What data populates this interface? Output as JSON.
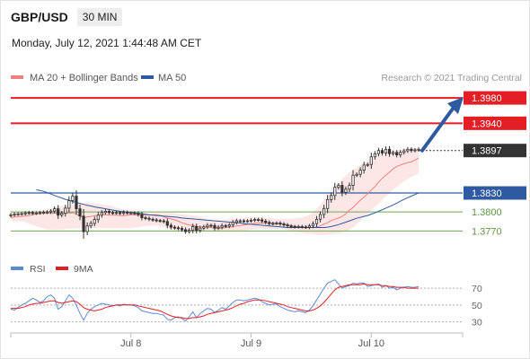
{
  "header": {
    "symbol": "GBP/USD",
    "timeframe": "30 MIN",
    "datetime": "Monday, July 12, 2021 1:44:48 AM CET"
  },
  "legend": {
    "ma20_bb": "MA 20 + Bollinger Bands",
    "ma50": "MA 50",
    "credit": "Research © 2021 Trading Central",
    "rsi": "RSI",
    "ma9": "9MA"
  },
  "colors": {
    "resistance": "#e31e24",
    "support_blue": "#2d5aa0",
    "support_green": "#6fa84f",
    "price_tag": "#333333",
    "ma20": "#f08080",
    "bollinger_fill": "#fde2e2",
    "ma50": "#2d5aa0",
    "rsi": "#5b8ad6",
    "rsi_ma": "#e31e24",
    "candle": "#333333",
    "arrow": "#2d5aa0"
  },
  "chart_data": {
    "type": "candlestick",
    "y_range": [
      1.3745,
      1.4
    ],
    "levels": [
      {
        "value": 1.398,
        "label": "1.3980",
        "kind": "resistance"
      },
      {
        "value": 1.394,
        "label": "1.3940",
        "kind": "resistance"
      },
      {
        "value": 1.3897,
        "label": "1.3897",
        "kind": "last_price"
      },
      {
        "value": 1.383,
        "label": "1.3830",
        "kind": "pivot"
      },
      {
        "value": 1.38,
        "label": "1.3800",
        "kind": "support"
      },
      {
        "value": 1.377,
        "label": "1.3770",
        "kind": "support"
      }
    ],
    "x_ticks": [
      "Jul 8",
      "Jul 9",
      "Jul 10"
    ],
    "x_tick_index": [
      33,
      66,
      99
    ],
    "close": [
      1.37955,
      1.37965,
      1.3797,
      1.37975,
      1.37985,
      1.3799,
      1.3798,
      1.37985,
      1.3799,
      1.37995,
      1.38,
      1.38015,
      1.3805,
      1.3795,
      1.3798,
      1.3806,
      1.3818,
      1.3825,
      1.3805,
      1.37935,
      1.3769,
      1.3778,
      1.3782,
      1.3788,
      1.3795,
      1.3799,
      1.3801,
      1.3799,
      1.37985,
      1.3799,
      1.3798,
      1.37995,
      1.37985,
      1.37985,
      1.3798,
      1.3796,
      1.3791,
      1.379,
      1.37885,
      1.37875,
      1.37865,
      1.3786,
      1.3785,
      1.3779,
      1.3776,
      1.3775,
      1.3774,
      1.3772,
      1.3769,
      1.3771,
      1.3777,
      1.3771,
      1.37745,
      1.37765,
      1.3779,
      1.37785,
      1.37745,
      1.3776,
      1.37785,
      1.37775,
      1.37795,
      1.37835,
      1.3786,
      1.3786,
      1.37855,
      1.3786,
      1.3787,
      1.3788,
      1.37875,
      1.37855,
      1.37835,
      1.37815,
      1.3782,
      1.37825,
      1.3781,
      1.37795,
      1.3778,
      1.3777,
      1.37765,
      1.3777,
      1.37765,
      1.3776,
      1.3778,
      1.37815,
      1.37885,
      1.3796,
      1.38055,
      1.38195,
      1.3826,
      1.3839,
      1.3842,
      1.3831,
      1.3836,
      1.3842,
      1.3858,
      1.38595,
      1.3866,
      1.3874,
      1.3875,
      1.3887,
      1.3892,
      1.3897,
      1.3893,
      1.3899,
      1.3892,
      1.3894,
      1.389,
      1.3894,
      1.38965,
      1.3899,
      1.3897,
      1.3898,
      1.3899
    ],
    "ma20": [
      1.3791,
      1.3792,
      1.37925,
      1.3793,
      1.37935,
      1.37945,
      1.37955,
      1.3797,
      1.37975,
      1.3798,
      1.3798,
      1.3798,
      1.3798,
      1.3798,
      1.37975,
      1.37975,
      1.3798,
      1.3799,
      1.37965,
      1.37935,
      1.3791,
      1.3792,
      1.3793,
      1.3794,
      1.37945,
      1.37955,
      1.37955,
      1.3795,
      1.3795,
      1.3795,
      1.37945,
      1.37945,
      1.3795,
      1.37955,
      1.37955,
      1.3795,
      1.37955,
      1.37955,
      1.37955,
      1.37955,
      1.37955,
      1.37945,
      1.37925,
      1.37905,
      1.3789,
      1.37875,
      1.37855,
      1.3783,
      1.3781,
      1.37795,
      1.37785,
      1.37775,
      1.37765,
      1.3776,
      1.3776,
      1.37755,
      1.37745,
      1.37745,
      1.37745,
      1.37755,
      1.3776,
      1.3777,
      1.3778,
      1.37785,
      1.37795,
      1.37805,
      1.3781,
      1.3782,
      1.37825,
      1.37825,
      1.3783,
      1.37825,
      1.37825,
      1.3782,
      1.37815,
      1.37805,
      1.37795,
      1.37785,
      1.37775,
      1.3777,
      1.37755,
      1.3775,
      1.3775,
      1.37755,
      1.37765,
      1.3778,
      1.3781,
      1.3783,
      1.37865,
      1.37885,
      1.37905,
      1.3793,
      1.3797,
      1.3803,
      1.3807,
      1.3813,
      1.38185,
      1.38235,
      1.3829,
      1.38345,
      1.384,
      1.3847,
      1.3853,
      1.3858,
      1.3863,
      1.3868,
      1.3872,
      1.3874,
      1.3876,
      1.3878,
      1.3879,
      1.3882,
      1.3885
    ],
    "bb_upper": [
      1.38015,
      1.3801,
      1.38,
      1.3799,
      1.3799,
      1.3799,
      1.37995,
      1.38005,
      1.38015,
      1.3803,
      1.3804,
      1.38055,
      1.3807,
      1.38085,
      1.38095,
      1.38105,
      1.38115,
      1.3812,
      1.3813,
      1.38135,
      1.3814,
      1.3814,
      1.3814,
      1.38135,
      1.3813,
      1.3812,
      1.3811,
      1.38105,
      1.3809,
      1.3807,
      1.38055,
      1.3804,
      1.38025,
      1.3801,
      1.37995,
      1.3798,
      1.3797,
      1.3797,
      1.37975,
      1.3798,
      1.37985,
      1.37985,
      1.37985,
      1.37985,
      1.37985,
      1.3798,
      1.3797,
      1.37965,
      1.3796,
      1.37955,
      1.37945,
      1.37935,
      1.3792,
      1.37905,
      1.37895,
      1.37885,
      1.3788,
      1.3788,
      1.3788,
      1.3788,
      1.37885,
      1.3789,
      1.37895,
      1.37905,
      1.3791,
      1.37915,
      1.3792,
      1.3792,
      1.3792,
      1.37915,
      1.37905,
      1.379,
      1.379,
      1.3789,
      1.3789,
      1.3789,
      1.3789,
      1.37895,
      1.379,
      1.37905,
      1.37915,
      1.3793,
      1.37955,
      1.37995,
      1.3805,
      1.38115,
      1.38185,
      1.38255,
      1.3833,
      1.38395,
      1.3846,
      1.3852,
      1.38575,
      1.38625,
      1.38665,
      1.387,
      1.3874,
      1.3877,
      1.3881,
      1.3884,
      1.3887,
      1.38895,
      1.3892,
      1.38935,
      1.38955,
      1.38965,
      1.38975,
      1.38985,
      1.3899,
      1.38995,
      1.39,
      1.39005,
      1.39005
    ],
    "bb_lower": [
      1.37865,
      1.3786,
      1.37855,
      1.3785,
      1.37835,
      1.37815,
      1.37795,
      1.37775,
      1.37755,
      1.3774,
      1.37725,
      1.3772,
      1.3772,
      1.3772,
      1.37725,
      1.3773,
      1.37735,
      1.3774,
      1.37745,
      1.37745,
      1.37745,
      1.37745,
      1.37745,
      1.37745,
      1.37745,
      1.37745,
      1.37745,
      1.37745,
      1.37745,
      1.37745,
      1.37745,
      1.37745,
      1.37745,
      1.37745,
      1.3775,
      1.3776,
      1.3777,
      1.3778,
      1.37785,
      1.37785,
      1.37785,
      1.37775,
      1.3776,
      1.3774,
      1.3772,
      1.37705,
      1.37695,
      1.3769,
      1.3769,
      1.3769,
      1.3769,
      1.3769,
      1.3769,
      1.3769,
      1.3769,
      1.3769,
      1.37695,
      1.37695,
      1.37695,
      1.37695,
      1.37695,
      1.37695,
      1.37695,
      1.377,
      1.37705,
      1.3771,
      1.3772,
      1.37725,
      1.3773,
      1.3773,
      1.3773,
      1.3773,
      1.3773,
      1.3773,
      1.3773,
      1.37725,
      1.37715,
      1.377,
      1.37695,
      1.37685,
      1.37675,
      1.37665,
      1.37655,
      1.37645,
      1.3764,
      1.37635,
      1.37635,
      1.3764,
      1.37645,
      1.37655,
      1.37665,
      1.37675,
      1.37695,
      1.3772,
      1.37755,
      1.37805,
      1.3786,
      1.3791,
      1.37965,
      1.38025,
      1.3808,
      1.38135,
      1.3819,
      1.38245,
      1.383,
      1.3835,
      1.38395,
      1.3844,
      1.38485,
      1.3852,
      1.3855,
      1.3858,
      1.386
    ],
    "ma50": [
      1.3835,
      1.3834,
      1.38325,
      1.38305,
      1.38285,
      1.3826,
      1.3824,
      1.3822,
      1.382,
      1.38185,
      1.38165,
      1.3815,
      1.38135,
      1.3812,
      1.38105,
      1.38095,
      1.3808,
      1.3807,
      1.3806,
      1.3805,
      1.3804,
      1.3803,
      1.3802,
      1.3801,
      1.38005,
      1.38,
      1.37995,
      1.37985,
      1.3798,
      1.37975,
      1.37965,
      1.37955,
      1.3795,
      1.37945,
      1.3794,
      1.37935,
      1.3793,
      1.37925,
      1.3792,
      1.37915,
      1.37905,
      1.379,
      1.37895,
      1.3789,
      1.37885,
      1.3788,
      1.37875,
      1.3787,
      1.37865,
      1.3786,
      1.37855,
      1.3785,
      1.37845,
      1.3784,
      1.37835,
      1.3783,
      1.37825,
      1.37815,
      1.3781,
      1.37805,
      1.378,
      1.37795,
      1.3779,
      1.37785,
      1.3778,
      1.37775,
      1.3777,
      1.37765,
      1.3776,
      1.37755,
      1.37755,
      1.37755,
      1.37755,
      1.37755,
      1.37755,
      1.37755,
      1.37755,
      1.37755,
      1.37755,
      1.37755,
      1.3776,
      1.3777,
      1.37785,
      1.378,
      1.3782,
      1.3784,
      1.3786,
      1.3788,
      1.379,
      1.37915,
      1.3793,
      1.37945,
      1.37965,
      1.37985,
      1.3801,
      1.38035,
      1.3806,
      1.38085,
      1.3811,
      1.3814,
      1.3817,
      1.382,
      1.38225,
      1.3825,
      1.38275,
      1.383
    ],
    "ma50_start_index": 7,
    "rsi_levels": [
      {
        "value": 70,
        "label": "70"
      },
      {
        "value": 50,
        "label": "50"
      },
      {
        "value": 30,
        "label": "30"
      }
    ],
    "rsi_range": [
      20,
      85
    ],
    "rsi": [
      45,
      44,
      47,
      50,
      52,
      55,
      58,
      56,
      53,
      55,
      60,
      62,
      58,
      45,
      48,
      55,
      62,
      58,
      50,
      40,
      32,
      40,
      45,
      48,
      50,
      52,
      51,
      50,
      49,
      50,
      49,
      51,
      50,
      50,
      49,
      47,
      43,
      42,
      41,
      40,
      40,
      39,
      38,
      33,
      32,
      35,
      36,
      34,
      31,
      36,
      42,
      35,
      40,
      43,
      46,
      45,
      41,
      44,
      47,
      45,
      49,
      53,
      56,
      56,
      55,
      56,
      57,
      58,
      57,
      54,
      52,
      50,
      51,
      51,
      48,
      46,
      44,
      43,
      42,
      43,
      42,
      41,
      44,
      49,
      56,
      63,
      70,
      76,
      78,
      80,
      75,
      70,
      72,
      73,
      76,
      75,
      76,
      76,
      72,
      73,
      74,
      75,
      71,
      73,
      70,
      71,
      68,
      70,
      71,
      72,
      71,
      71,
      72
    ],
    "rsi_ma9": [
      46,
      46,
      46,
      47,
      48,
      50,
      51,
      52,
      52,
      53,
      54,
      55,
      55,
      53,
      52,
      53,
      54,
      55,
      54,
      51,
      47,
      45,
      44,
      43,
      44,
      45,
      47,
      48,
      49,
      50,
      50,
      50,
      50,
      50,
      50,
      49,
      48,
      47,
      46,
      45,
      44,
      43,
      41,
      39,
      37,
      36,
      35,
      35,
      34,
      34,
      35,
      35,
      36,
      37,
      39,
      40,
      41,
      42,
      43,
      44,
      45,
      47,
      49,
      51,
      52,
      54,
      55,
      56,
      56,
      56,
      55,
      54,
      53,
      52,
      51,
      50,
      48,
      47,
      46,
      45,
      44,
      43,
      43,
      44,
      46,
      49,
      53,
      58,
      63,
      68,
      71,
      72,
      73,
      74,
      74,
      74,
      74,
      75,
      74,
      74,
      74,
      74,
      73,
      73,
      72,
      72,
      71,
      71,
      71,
      70,
      70,
      70,
      70
    ],
    "forecast_arrow": {
      "from": 1.3897,
      "to": 1.398
    }
  }
}
